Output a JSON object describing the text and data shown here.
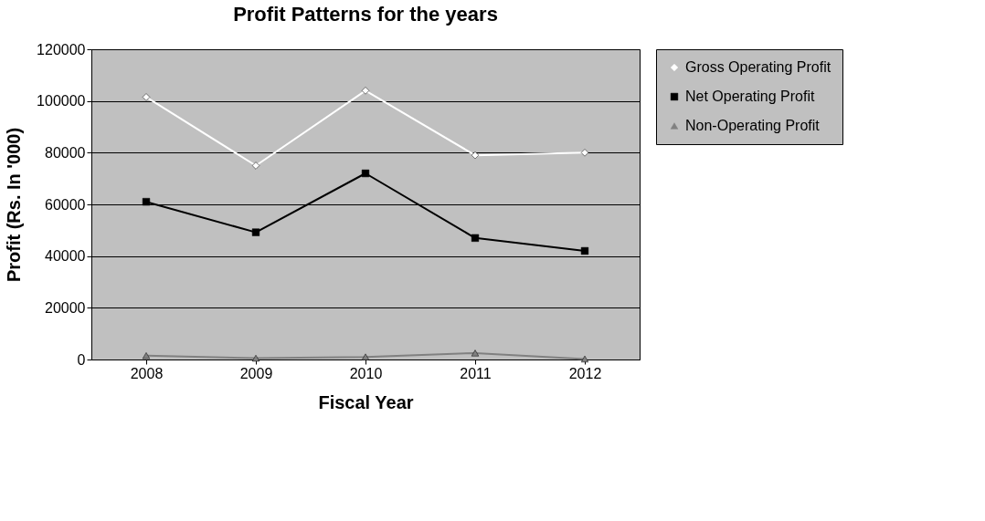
{
  "chart_data": {
    "type": "line",
    "title": "Profit Patterns for the years",
    "xlabel": "Fiscal Year",
    "ylabel": "Profit (Rs. In '000)",
    "categories": [
      "2008",
      "2009",
      "2010",
      "2011",
      "2012"
    ],
    "series": [
      {
        "name": "Gross Operating Profit",
        "color": "#ffffff",
        "marker": "diamond",
        "values": [
          101500,
          75000,
          104000,
          79000,
          80000
        ]
      },
      {
        "name": "Net Operating Profit",
        "color": "#000000",
        "marker": "square",
        "values": [
          61000,
          49200,
          72000,
          47000,
          42000
        ]
      },
      {
        "name": "Non-Operating Profit",
        "color": "#808080",
        "marker": "triangle",
        "values": [
          1500,
          500,
          1000,
          2500,
          200
        ]
      }
    ],
    "ylim": [
      0,
      120000
    ],
    "yticks": [
      0,
      20000,
      40000,
      60000,
      80000,
      100000,
      120000
    ],
    "grid": "y",
    "legend": "right",
    "line_style": "solid"
  }
}
